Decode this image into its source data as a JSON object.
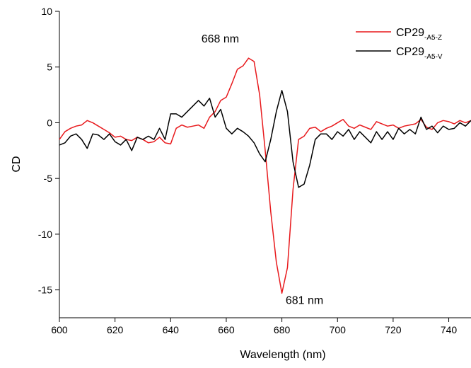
{
  "chart_data": {
    "type": "line",
    "x_label": "Wavelength (nm)",
    "y_label": "CD",
    "x": [
      600,
      602,
      604,
      606,
      608,
      610,
      612,
      614,
      616,
      618,
      620,
      622,
      624,
      626,
      628,
      630,
      632,
      634,
      636,
      638,
      640,
      642,
      644,
      646,
      648,
      650,
      652,
      654,
      656,
      658,
      660,
      662,
      664,
      666,
      668,
      670,
      672,
      674,
      676,
      678,
      680,
      682,
      684,
      686,
      688,
      690,
      692,
      694,
      696,
      698,
      700,
      702,
      704,
      706,
      708,
      710,
      712,
      714,
      716,
      718,
      720,
      722,
      724,
      726,
      728,
      730,
      732,
      734,
      736,
      738,
      740,
      742,
      744,
      746,
      748
    ],
    "series": [
      {
        "name": "CP29",
        "subscript": "-A5-Z",
        "color": "#e8191c",
        "values": [
          -1.5,
          -0.8,
          -0.5,
          -0.3,
          -0.2,
          0.2,
          0,
          -0.3,
          -0.6,
          -0.9,
          -1.3,
          -1.2,
          -1.5,
          -1.6,
          -1.3,
          -1.5,
          -1.8,
          -1.7,
          -1.3,
          -1.8,
          -1.9,
          -0.5,
          -0.2,
          -0.4,
          -0.3,
          -0.2,
          -0.5,
          0.5,
          1.0,
          2.0,
          2.3,
          3.5,
          4.8,
          5.1,
          5.8,
          5.5,
          2.5,
          -2.5,
          -8,
          -12.5,
          -15.3,
          -13,
          -6,
          -1.5,
          -1.2,
          -0.5,
          -0.4,
          -0.8,
          -0.5,
          -0.3,
          0,
          0.3,
          -0.3,
          -0.5,
          -0.2,
          -0.4,
          -0.6,
          0.1,
          -0.1,
          -0.3,
          -0.2,
          -0.5,
          -0.3,
          -0.2,
          -0.1,
          0.3,
          -0.4,
          -0.6,
          0,
          0.2,
          0.1,
          -0.1,
          0.2,
          0,
          0.2
        ]
      },
      {
        "name": "CP29",
        "subscript": "-A5-V",
        "color": "#000000",
        "values": [
          -2,
          -1.8,
          -1.2,
          -1.0,
          -1.5,
          -2.3,
          -1.0,
          -1.1,
          -1.5,
          -1.0,
          -1.7,
          -2.0,
          -1.5,
          -2.5,
          -1.3,
          -1.5,
          -1.2,
          -1.5,
          -0.5,
          -1.5,
          0.8,
          0.8,
          0.5,
          1.0,
          1.5,
          2.0,
          1.5,
          2.2,
          0.5,
          1.2,
          -0.5,
          -1.0,
          -0.5,
          -0.8,
          -1.2,
          -1.8,
          -2.8,
          -3.5,
          -1.5,
          1.0,
          2.9,
          1.0,
          -3.5,
          -5.8,
          -5.5,
          -3.8,
          -1.5,
          -1.0,
          -1.0,
          -1.5,
          -0.8,
          -1.2,
          -0.6,
          -1.5,
          -0.8,
          -1.3,
          -1.8,
          -0.8,
          -1.5,
          -0.8,
          -1.5,
          -0.5,
          -1.0,
          -0.6,
          -1.0,
          0.5,
          -0.6,
          -0.3,
          -0.9,
          -0.3,
          -0.6,
          -0.5,
          0,
          -0.3,
          0.2
        ]
      }
    ],
    "annotations": [
      {
        "text": "668 nm",
        "x": 668,
        "y": 5.8
      },
      {
        "text": "681 nm",
        "x": 681,
        "y": -15.3
      }
    ],
    "xlim": [
      600,
      748
    ],
    "ylim": [
      -17.5,
      10
    ],
    "xticks": [
      600,
      620,
      640,
      660,
      680,
      700,
      720,
      740
    ],
    "yticks": [
      10,
      5,
      0,
      -5,
      -10,
      -15
    ],
    "legend": "upper right"
  }
}
